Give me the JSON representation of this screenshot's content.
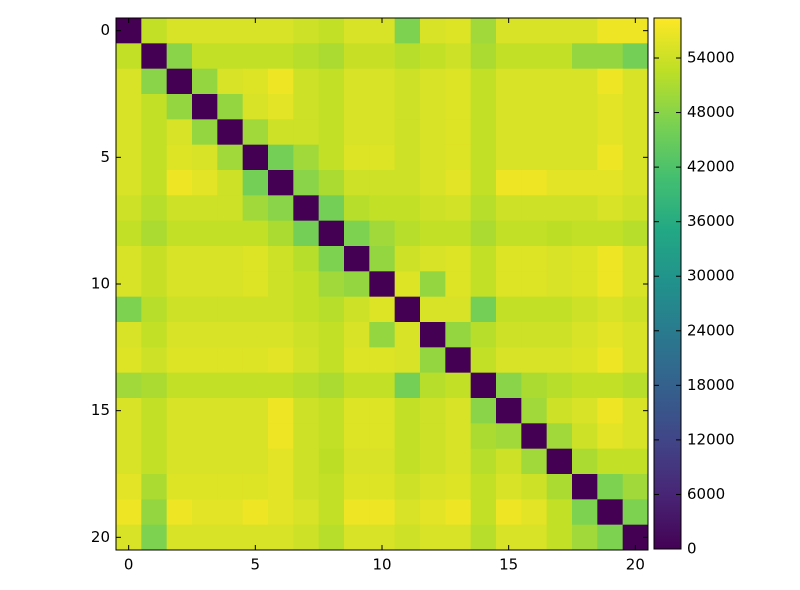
{
  "chart_data": {
    "type": "heatmap",
    "xticks": [
      0,
      5,
      10,
      15,
      20
    ],
    "yticks": [
      0,
      5,
      10,
      15,
      20
    ],
    "xlim": [
      -0.5,
      20.5
    ],
    "ylim": [
      20.5,
      -0.5
    ],
    "zlim": [
      0,
      58400
    ],
    "colorbar_ticks": [
      0,
      6000,
      12000,
      18000,
      24000,
      30000,
      36000,
      42000,
      48000,
      54000
    ],
    "colormap": "viridis",
    "z": [
      [
        0,
        53000,
        55000,
        55000,
        55000,
        55000,
        55000,
        54000,
        53000,
        55000,
        55000,
        47000,
        55000,
        55500,
        50000,
        55000,
        55000,
        55000,
        55000,
        57000,
        57000
      ],
      [
        53000,
        0,
        48000,
        53000,
        53000,
        53000,
        53000,
        52000,
        51000,
        53500,
        53500,
        52000,
        53000,
        54000,
        51000,
        53000,
        53000,
        53000,
        49000,
        49000,
        46000
      ],
      [
        55000,
        48000,
        0,
        49000,
        55000,
        55500,
        57000,
        54000,
        53000,
        55000,
        55000,
        54000,
        55000,
        55500,
        53000,
        55000,
        55000,
        55000,
        55000,
        57000,
        55000
      ],
      [
        55000,
        53000,
        49000,
        0,
        49000,
        55000,
        56000,
        54000,
        53000,
        55000,
        55000,
        54000,
        55000,
        55500,
        53000,
        55000,
        55000,
        55000,
        55000,
        56000,
        55000
      ],
      [
        55000,
        53000,
        55000,
        49000,
        0,
        50000,
        54000,
        54000,
        53000,
        55000,
        55000,
        54000,
        55000,
        55500,
        53000,
        55000,
        55000,
        55000,
        55000,
        56000,
        55000
      ],
      [
        55000,
        53000,
        55500,
        55000,
        50000,
        0,
        46000,
        50000,
        53000,
        55500,
        55500,
        54000,
        55000,
        55500,
        53000,
        55000,
        55000,
        55000,
        55000,
        57000,
        55000
      ],
      [
        55000,
        53000,
        57000,
        56000,
        54000,
        46000,
        0,
        48000,
        51000,
        54000,
        54000,
        54000,
        55000,
        56000,
        53000,
        57000,
        57000,
        56000,
        56000,
        56000,
        55000
      ],
      [
        54000,
        52000,
        54000,
        54000,
        54000,
        50000,
        48000,
        0,
        46000,
        52000,
        53000,
        53000,
        54000,
        54500,
        52000,
        54000,
        54000,
        54000,
        54000,
        55000,
        54000
      ],
      [
        53000,
        51000,
        53000,
        53000,
        53000,
        53000,
        51000,
        46000,
        0,
        47000,
        50000,
        52000,
        53000,
        53000,
        51000,
        53000,
        53000,
        52500,
        53000,
        53000,
        52000
      ],
      [
        55000,
        53500,
        55000,
        55000,
        55000,
        55500,
        54000,
        52000,
        47000,
        0,
        49000,
        54000,
        55000,
        55500,
        53000,
        55500,
        55500,
        55000,
        55500,
        57000,
        55000
      ],
      [
        55000,
        53500,
        55000,
        55000,
        55000,
        55500,
        54000,
        53000,
        50000,
        49000,
        0,
        55500,
        49000,
        55500,
        53000,
        55500,
        55500,
        55000,
        55500,
        57000,
        55000
      ],
      [
        47000,
        52000,
        54000,
        54000,
        54000,
        54000,
        54000,
        53000,
        52000,
        54000,
        55500,
        0,
        55000,
        55000,
        46000,
        53000,
        53000,
        53000,
        54000,
        55000,
        54000
      ],
      [
        55000,
        53000,
        55000,
        55000,
        55000,
        55000,
        55000,
        54000,
        53000,
        55000,
        49000,
        55000,
        0,
        49000,
        52000,
        54000,
        54000,
        54000,
        55000,
        56000,
        55000
      ],
      [
        55500,
        54000,
        55500,
        55500,
        55500,
        55500,
        56000,
        54500,
        53000,
        55500,
        55500,
        55000,
        49000,
        0,
        53000,
        55000,
        55000,
        55000,
        55500,
        57000,
        55000
      ],
      [
        50000,
        51000,
        53000,
        53000,
        53000,
        53000,
        53000,
        52000,
        51000,
        53000,
        53000,
        46000,
        52000,
        53000,
        0,
        48000,
        51000,
        52000,
        53000,
        53000,
        52000
      ],
      [
        55000,
        53000,
        55000,
        55000,
        55000,
        55000,
        57000,
        54000,
        53000,
        55500,
        55500,
        53000,
        54000,
        55000,
        48000,
        0,
        50000,
        54000,
        55000,
        57000,
        55000
      ],
      [
        55000,
        53000,
        55000,
        55000,
        55000,
        55000,
        57000,
        54000,
        53000,
        55500,
        55500,
        53000,
        54000,
        55000,
        51000,
        50000,
        0,
        50000,
        54000,
        56000,
        55000
      ],
      [
        55000,
        53000,
        55000,
        55000,
        55000,
        55000,
        56000,
        54000,
        52500,
        55000,
        55000,
        53000,
        54000,
        55000,
        52000,
        54000,
        50000,
        0,
        51000,
        53000,
        53000
      ],
      [
        56000,
        51000,
        55500,
        55500,
        55500,
        55500,
        56000,
        54000,
        53000,
        55500,
        55500,
        54000,
        55000,
        55500,
        53000,
        55000,
        54000,
        51000,
        0,
        47000,
        50000
      ],
      [
        57000,
        49000,
        57000,
        56000,
        56000,
        57000,
        56000,
        55000,
        53000,
        57000,
        57000,
        55000,
        56000,
        57000,
        53000,
        57000,
        56000,
        53000,
        47000,
        0,
        47000
      ],
      [
        55000,
        47000,
        55000,
        55000,
        55000,
        55000,
        55000,
        54000,
        52000,
        55000,
        55000,
        54000,
        55000,
        55000,
        52000,
        55000,
        55000,
        53000,
        50000,
        47000,
        0
      ]
    ]
  }
}
